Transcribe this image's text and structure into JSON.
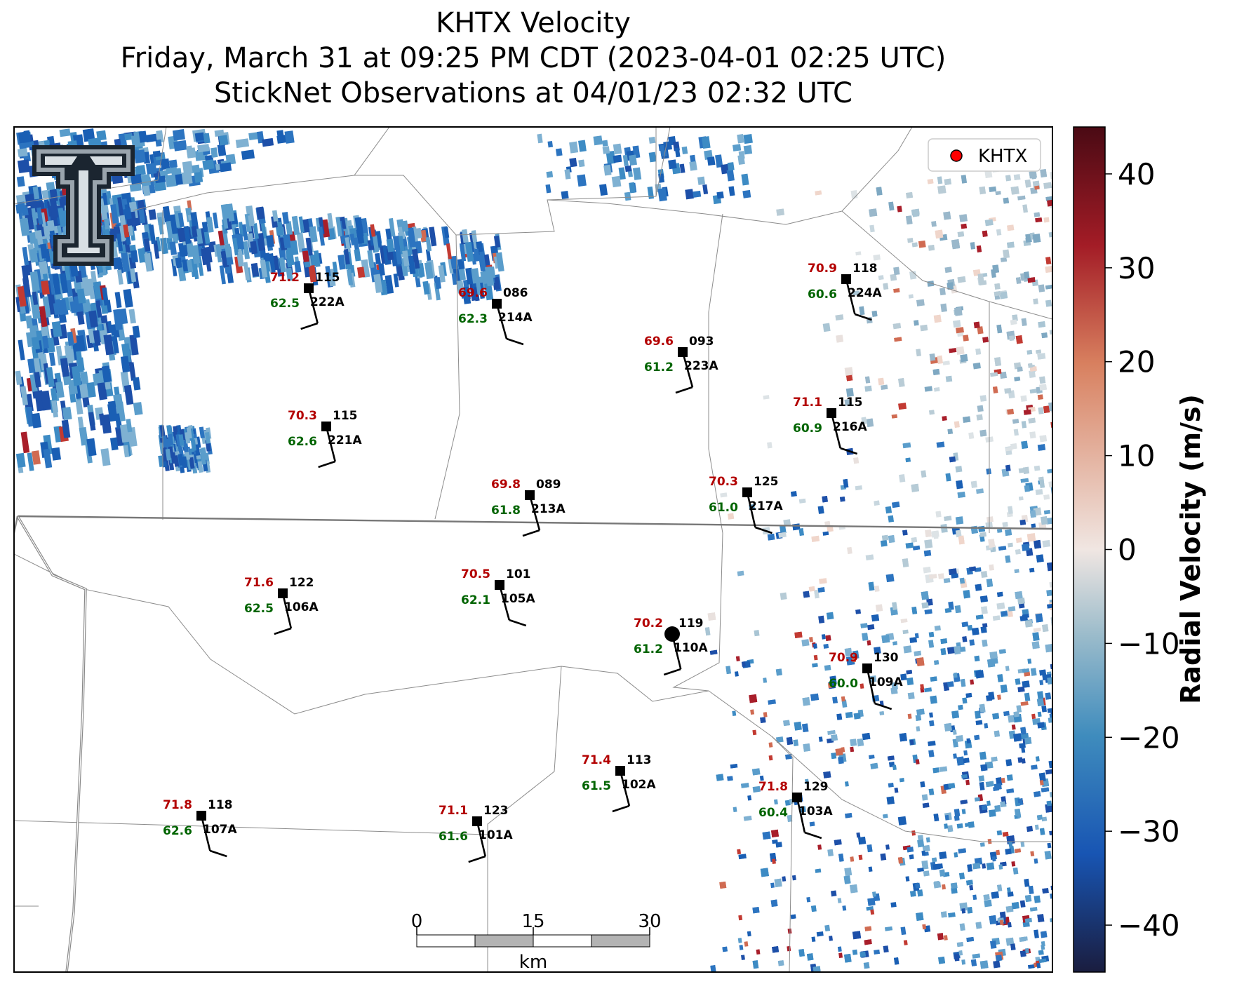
{
  "title": {
    "line1": "KHTX Velocity",
    "line2": "Friday, March 31 at 09:25 PM CDT (2023-04-01 02:25 UTC)",
    "line3": "StickNet Observations at 04/01/23 02:32 UTC"
  },
  "legend": {
    "label": "KHTX",
    "marker_color": "#ff0000"
  },
  "colorbar": {
    "label": "Radial Velocity (m/s)",
    "range": [
      -45,
      45
    ],
    "ticks": [
      "40",
      "30",
      "20",
      "10",
      "0",
      "−10",
      "−20",
      "−30",
      "−40"
    ],
    "colors": [
      "#4a0a14",
      "#a31c26",
      "#d8805f",
      "#f0e6e2",
      "#9cbccb",
      "#3f8cbd",
      "#1855b3",
      "#1a1d3f"
    ]
  },
  "scalebar": {
    "labels": [
      "0",
      "15",
      "30"
    ],
    "unit": "km"
  },
  "logo": {
    "name": "texas-tech-double-t-logo"
  },
  "radar_site": {
    "name": "KHTX"
  },
  "stations": [
    {
      "id": "222A",
      "temp": "71.2",
      "dew": "62.5",
      "dir": "115"
    },
    {
      "id": "214A",
      "temp": "69.6",
      "dew": "62.3",
      "dir": "086"
    },
    {
      "id": "223A",
      "temp": "69.6",
      "dew": "61.2",
      "dir": "093"
    },
    {
      "id": "224A",
      "temp": "70.9",
      "dew": "60.6",
      "dir": "118"
    },
    {
      "id": "221A",
      "temp": "70.3",
      "dew": "62.6",
      "dir": "115"
    },
    {
      "id": "216A",
      "temp": "71.1",
      "dew": "60.9",
      "dir": "115"
    },
    {
      "id": "213A",
      "temp": "69.8",
      "dew": "61.8",
      "dir": "089"
    },
    {
      "id": "217A",
      "temp": "70.3",
      "dew": "61.0",
      "dir": "125"
    },
    {
      "id": "106A",
      "temp": "71.6",
      "dew": "62.5",
      "dir": "122"
    },
    {
      "id": "105A",
      "temp": "70.5",
      "dew": "62.1",
      "dir": "101"
    },
    {
      "id": "110A",
      "temp": "70.2",
      "dew": "61.2",
      "dir": "119"
    },
    {
      "id": "109A",
      "temp": "70.9",
      "dew": "60.0",
      "dir": "130"
    },
    {
      "id": "102A",
      "temp": "71.4",
      "dew": "61.5",
      "dir": "113"
    },
    {
      "id": "107A",
      "temp": "71.8",
      "dew": "62.6",
      "dir": "118"
    },
    {
      "id": "101A",
      "temp": "71.1",
      "dew": "61.6",
      "dir": "123"
    },
    {
      "id": "103A",
      "temp": "71.8",
      "dew": "60.4",
      "dir": "129"
    }
  ]
}
